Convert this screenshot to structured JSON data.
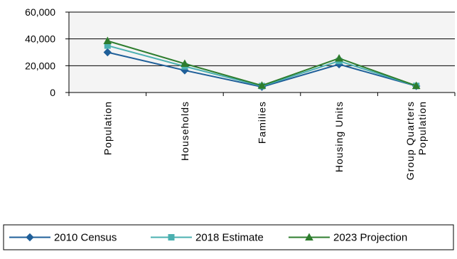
{
  "chart_data": {
    "type": "line",
    "title": "",
    "xlabel": "",
    "ylabel": "",
    "categories": [
      [
        "Population"
      ],
      [
        "Households"
      ],
      [
        "Families"
      ],
      [
        "Housing Units"
      ],
      [
        "Group Quarters",
        "Population"
      ]
    ],
    "y_ticks": [
      "0",
      "20,000",
      "40,000",
      "60,000"
    ],
    "ylim": [
      0,
      60000
    ],
    "grid": true,
    "legend_position": "bottom",
    "series": [
      {
        "name": "2010 Census",
        "color": "#1f5f99",
        "marker": "diamond",
        "values": [
          30000,
          16500,
          4200,
          21000,
          4800
        ]
      },
      {
        "name": "2018 Estimate",
        "color": "#4bb0b0",
        "marker": "square",
        "values": [
          35000,
          19500,
          4800,
          23500,
          4900
        ]
      },
      {
        "name": "2023 Projection",
        "color": "#2e7d2e",
        "marker": "triangle",
        "values": [
          38500,
          21500,
          5200,
          25500,
          5000
        ]
      }
    ]
  }
}
